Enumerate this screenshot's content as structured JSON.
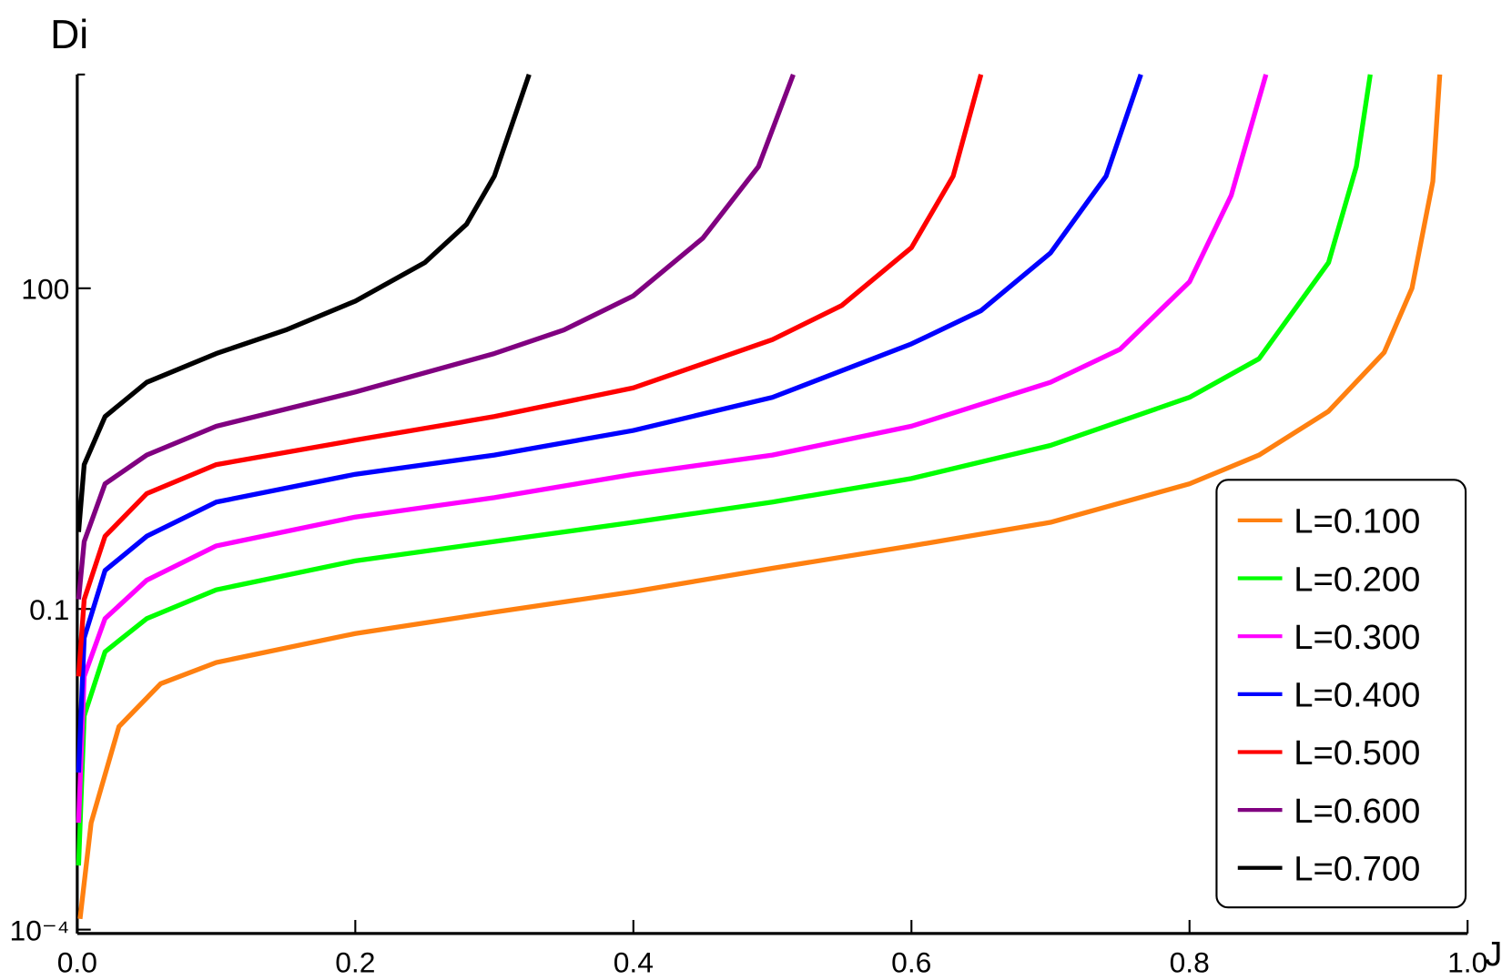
{
  "chart_data": {
    "type": "line",
    "x_label": "J",
    "y_label": "Di",
    "xlim": [
      0,
      1
    ],
    "ylim": [
      0.0001,
      10000
    ],
    "log_y": true,
    "xticks": [
      {
        "value": 0,
        "label": "0.0"
      },
      {
        "value": 0.2,
        "label": "0.2"
      },
      {
        "value": 0.4,
        "label": "0.4"
      },
      {
        "value": 0.6,
        "label": "0.6"
      },
      {
        "value": 0.8,
        "label": "0.8"
      },
      {
        "value": 1,
        "label": "1.0"
      }
    ],
    "yticks": [
      {
        "value": 0.0001,
        "label": "10⁻⁴"
      },
      0.1,
      100
    ],
    "legend": "lower right",
    "series": [
      {
        "name": "L=0.100",
        "color": "#ff8010",
        "x": [
          0.002,
          0.01,
          0.03,
          0.06,
          0.1,
          0.2,
          0.3,
          0.4,
          0.5,
          0.6,
          0.7,
          0.8,
          0.85,
          0.9,
          0.94,
          0.96,
          0.975,
          0.98
        ],
        "values": [
          0.000126,
          0.001,
          0.00794,
          0.02,
          0.0316,
          0.0589,
          0.0933,
          0.145,
          0.24,
          0.389,
          0.646,
          1.48,
          2.75,
          7.08,
          25.1,
          100,
          1000,
          10000
        ]
      },
      {
        "name": "L=0.200",
        "color": "#00ff00",
        "x": [
          0.001,
          0.005,
          0.02,
          0.05,
          0.1,
          0.2,
          0.3,
          0.4,
          0.5,
          0.6,
          0.7,
          0.8,
          0.85,
          0.9,
          0.92,
          0.93
        ],
        "values": [
          0.000398,
          0.01,
          0.0398,
          0.0813,
          0.151,
          0.282,
          0.427,
          0.646,
          1,
          1.66,
          3.39,
          9.55,
          21.9,
          174,
          1380,
          10000
        ]
      },
      {
        "name": "L=0.300",
        "color": "#ff00ff",
        "x": [
          0.001,
          0.005,
          0.02,
          0.05,
          0.1,
          0.2,
          0.3,
          0.4,
          0.5,
          0.6,
          0.7,
          0.75,
          0.8,
          0.83,
          0.855
        ],
        "values": [
          0.001,
          0.0234,
          0.0813,
          0.186,
          0.389,
          0.724,
          1.1,
          1.82,
          2.75,
          5.13,
          13.2,
          26.9,
          115,
          741,
          10000
        ]
      },
      {
        "name": "L=0.400",
        "color": "#0000ff",
        "x": [
          0.001,
          0.005,
          0.02,
          0.05,
          0.1,
          0.2,
          0.3,
          0.4,
          0.5,
          0.6,
          0.65,
          0.7,
          0.74,
          0.765
        ],
        "values": [
          0.00295,
          0.0537,
          0.229,
          0.479,
          1,
          1.82,
          2.75,
          4.68,
          9.55,
          30.2,
          61.7,
          214,
          1120,
          10000
        ]
      },
      {
        "name": "L=0.500",
        "color": "#ff0000",
        "x": [
          0.001,
          0.005,
          0.02,
          0.05,
          0.1,
          0.2,
          0.3,
          0.4,
          0.5,
          0.55,
          0.6,
          0.63,
          0.65
        ],
        "values": [
          0.0234,
          0.123,
          0.479,
          1.2,
          2.24,
          3.8,
          6.31,
          11.7,
          33.1,
          69.2,
          240,
          1120,
          10000
        ]
      },
      {
        "name": "L=0.600",
        "color": "#800080",
        "x": [
          0.001,
          0.005,
          0.02,
          0.05,
          0.1,
          0.2,
          0.3,
          0.35,
          0.4,
          0.45,
          0.49,
          0.515
        ],
        "values": [
          0.123,
          0.427,
          1.48,
          2.75,
          5.13,
          10.7,
          24.5,
          40.7,
          85.1,
          295,
          1380,
          10000
        ]
      },
      {
        "name": "L=0.700",
        "color": "#000000",
        "x": [
          0.001,
          0.005,
          0.02,
          0.05,
          0.1,
          0.15,
          0.2,
          0.25,
          0.28,
          0.3,
          0.325
        ],
        "values": [
          0.525,
          2.24,
          6.31,
          13.2,
          24.5,
          40.7,
          75.9,
          174,
          398,
          1120,
          10000
        ]
      }
    ]
  }
}
